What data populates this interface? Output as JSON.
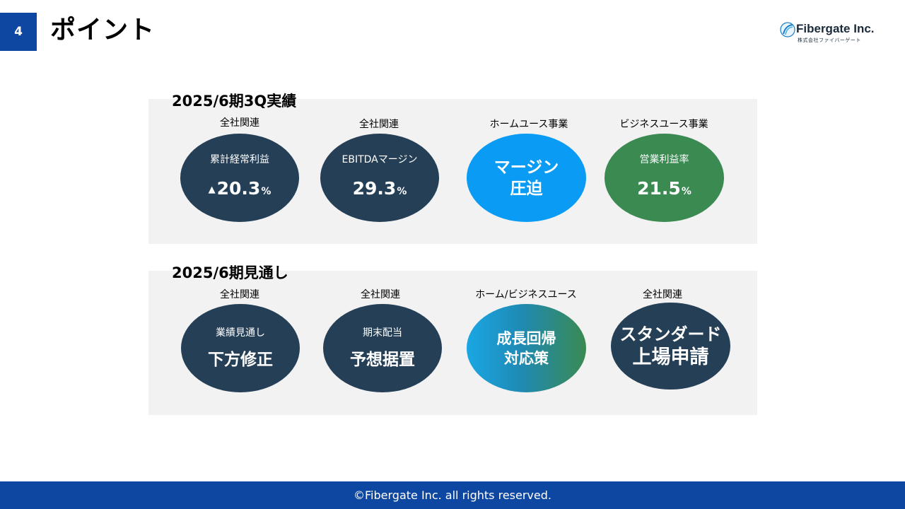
{
  "page": {
    "number": "4",
    "title": "ポイント"
  },
  "logo": {
    "name": "Fibergate Inc.",
    "sub": "株式会社ファイバーゲート",
    "brand_color": "#1a2a3a"
  },
  "colors": {
    "accent": "#0d47a1",
    "navy": "#243f56",
    "blue": "#0a9bf5",
    "green": "#3a8a52",
    "panel": "#f2f2f2"
  },
  "section1": {
    "title": "2025/6期3Q実績",
    "items": [
      {
        "category": "全社関連",
        "label": "累計経常利益",
        "marker": "▲",
        "value": "20.3",
        "unit": "%"
      },
      {
        "category": "全社関連",
        "label": "EBITDAマージン",
        "value": "29.3",
        "unit": "%"
      },
      {
        "category": "ホームユース事業",
        "line1": "マージン",
        "line2": "圧迫"
      },
      {
        "category": "ビジネスユース事業",
        "label": "営業利益率",
        "value": "21.5",
        "unit": "%"
      }
    ]
  },
  "section2": {
    "title": "2025/6期見通し",
    "items": [
      {
        "category": "全社関連",
        "label": "業績見通し",
        "value": "下方修正"
      },
      {
        "category": "全社関連",
        "label": "期末配当",
        "value": "予想据置"
      },
      {
        "category": "ホーム/ビジネスユース",
        "line1": "成長回帰",
        "line2": "対応策"
      },
      {
        "category": "全社関連",
        "line1": "スタンダード",
        "line2": "上場申請"
      }
    ]
  },
  "footer": {
    "text": "©Fibergate Inc. all rights reserved."
  }
}
